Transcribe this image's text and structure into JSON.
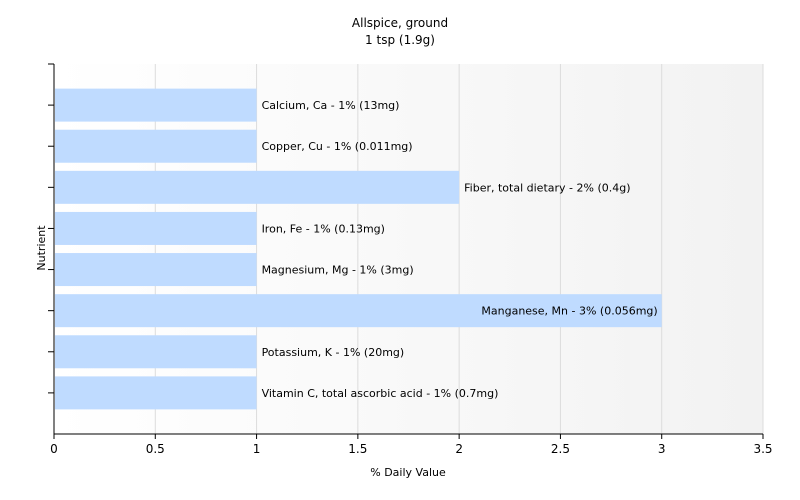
{
  "chart_data": {
    "type": "bar",
    "orientation": "horizontal",
    "title": "Allspice, ground",
    "subtitle": "1 tsp (1.9g)",
    "xlabel": "% Daily Value",
    "ylabel": "Nutrient",
    "xlim": [
      0,
      3.5
    ],
    "xticks": [
      "0",
      "0.5",
      "1",
      "1.5",
      "2",
      "2.5",
      "3",
      "3.5"
    ],
    "grid": true,
    "bar_color": "#bfdbff",
    "categories": [
      "Calcium, Ca",
      "Copper, Cu",
      "Fiber, total dietary",
      "Iron, Fe",
      "Magnesium, Mg",
      "Manganese, Mn",
      "Potassium, K",
      "Vitamin C, total ascorbic acid"
    ],
    "values": [
      1,
      1,
      2,
      1,
      1,
      3,
      1,
      1
    ],
    "data_labels": [
      "Calcium, Ca - 1% (13mg)",
      "Copper, Cu - 1% (0.011mg)",
      "Fiber, total dietary - 2% (0.4g)",
      "Iron, Fe - 1% (0.13mg)",
      "Magnesium, Mg - 1% (3mg)",
      "Manganese, Mn - 3% (0.056mg)",
      "Potassium, K - 1% (20mg)",
      "Vitamin C, total ascorbic acid - 1% (0.7mg)"
    ]
  }
}
